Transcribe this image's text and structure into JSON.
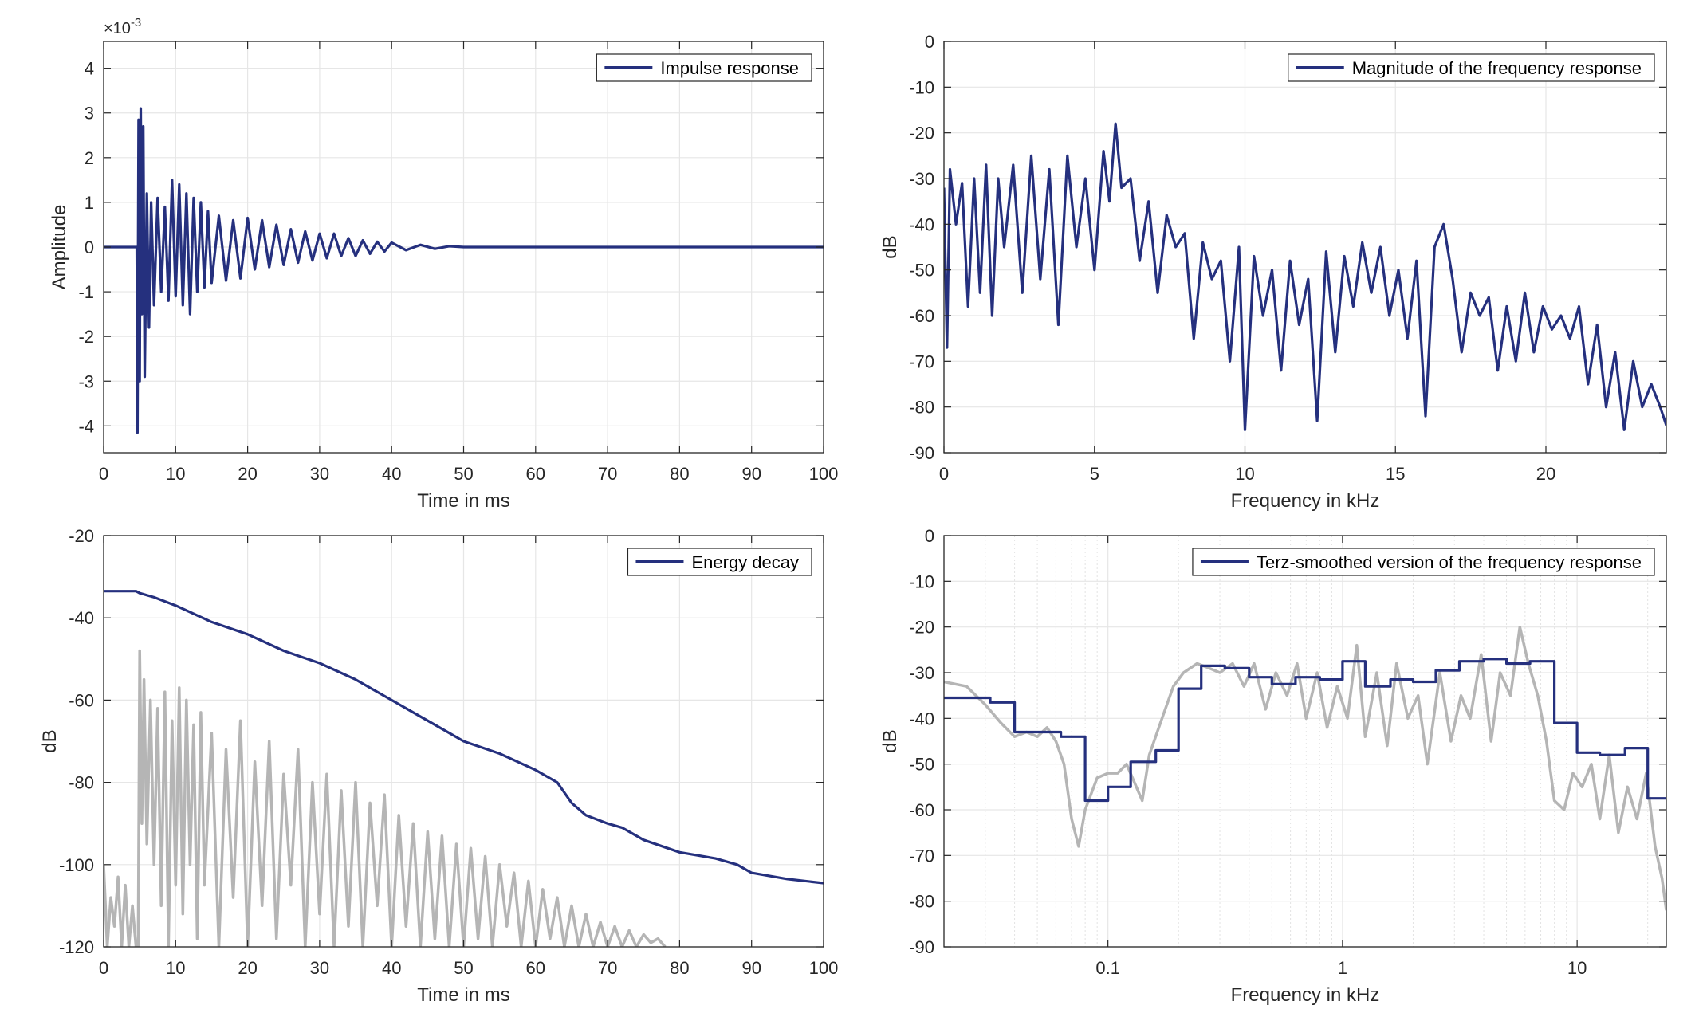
{
  "colors": {
    "series": "#25307e",
    "background_trace": "#b5b5b5",
    "grid": "#e6e6e6",
    "axis": "#262626"
  },
  "chart_data": [
    {
      "id": "impulse",
      "type": "line",
      "xscale": "linear",
      "xlabel": "Time in ms",
      "ylabel": "Amplitude",
      "exponent_label": "×10",
      "exponent_power": "-3",
      "xlim": [
        0,
        100
      ],
      "ylim": [
        -4.6,
        4.6
      ],
      "xticks": [
        0,
        10,
        20,
        30,
        40,
        50,
        60,
        70,
        80,
        90,
        100
      ],
      "xticklabels": [
        "0",
        "10",
        "20",
        "30",
        "40",
        "50",
        "60",
        "70",
        "80",
        "90",
        "100"
      ],
      "yticks": [
        -4,
        -3,
        -2,
        -1,
        0,
        1,
        2,
        3,
        4
      ],
      "yticklabels": [
        "-4",
        "-3",
        "-2",
        "-1",
        "0",
        "1",
        "2",
        "3",
        "4"
      ],
      "grid": true,
      "legend": {
        "position": "top-right",
        "entries": [
          "Impulse response"
        ]
      },
      "series": [
        {
          "name": "Impulse response",
          "color": "#25307e",
          "x": [
            0,
            4.6,
            4.7,
            4.85,
            5.0,
            5.15,
            5.3,
            5.5,
            5.7,
            6.0,
            6.3,
            6.6,
            7.0,
            7.5,
            8.0,
            8.5,
            9.0,
            9.5,
            10.0,
            10.5,
            11.0,
            11.5,
            12.0,
            12.5,
            13.0,
            13.5,
            14.0,
            14.5,
            15.0,
            16.0,
            17.0,
            18.0,
            19.0,
            20.0,
            21.0,
            22.0,
            23.0,
            24.0,
            25.0,
            26.0,
            27.0,
            28.0,
            29.0,
            30.0,
            31.0,
            32.0,
            33.0,
            34.0,
            35.0,
            36.0,
            37.0,
            38.0,
            39.0,
            40.0,
            42.0,
            44.0,
            46.0,
            48.0,
            50.0,
            100.0
          ],
          "y": [
            0,
            0,
            -4.15,
            2.85,
            -3.0,
            3.1,
            -1.5,
            2.7,
            -2.9,
            1.2,
            -1.8,
            1.0,
            -1.3,
            1.1,
            -1.0,
            0.9,
            -1.2,
            1.5,
            -1.1,
            1.4,
            -1.3,
            1.2,
            -1.5,
            1.1,
            -1.0,
            1.0,
            -0.9,
            0.8,
            -0.8,
            0.7,
            -0.75,
            0.6,
            -0.7,
            0.65,
            -0.5,
            0.6,
            -0.45,
            0.5,
            -0.4,
            0.4,
            -0.35,
            0.35,
            -0.3,
            0.3,
            -0.25,
            0.3,
            -0.2,
            0.2,
            -0.2,
            0.15,
            -0.15,
            0.12,
            -0.1,
            0.1,
            -0.07,
            0.05,
            -0.04,
            0.02,
            0,
            0
          ]
        }
      ]
    },
    {
      "id": "magnitude",
      "type": "line",
      "xscale": "linear",
      "xlabel": "Frequency in kHz",
      "ylabel": "dB",
      "xlim": [
        0,
        24
      ],
      "ylim": [
        -90,
        0
      ],
      "xticks": [
        0,
        5,
        10,
        15,
        20
      ],
      "xticklabels": [
        "0",
        "5",
        "10",
        "15",
        "20"
      ],
      "yticks": [
        0,
        -10,
        -20,
        -30,
        -40,
        -50,
        -60,
        -70,
        -80,
        -90
      ],
      "yticklabels": [
        "0",
        "-10",
        "-20",
        "-30",
        "-40",
        "-50",
        "-60",
        "-70",
        "-80",
        "-90"
      ],
      "grid": true,
      "legend": {
        "position": "top-right",
        "entries": [
          "Magnitude of the frequency response"
        ]
      },
      "series": [
        {
          "name": "Magnitude of the frequency response",
          "color": "#25307e",
          "x": [
            0,
            0.1,
            0.2,
            0.4,
            0.6,
            0.8,
            1.0,
            1.2,
            1.4,
            1.6,
            1.8,
            2.0,
            2.3,
            2.6,
            2.9,
            3.2,
            3.5,
            3.8,
            4.1,
            4.4,
            4.7,
            5.0,
            5.3,
            5.5,
            5.7,
            5.9,
            6.2,
            6.5,
            6.8,
            7.1,
            7.4,
            7.7,
            8.0,
            8.3,
            8.6,
            8.9,
            9.2,
            9.5,
            9.8,
            10.0,
            10.3,
            10.6,
            10.9,
            11.2,
            11.5,
            11.8,
            12.1,
            12.4,
            12.7,
            13.0,
            13.3,
            13.6,
            13.9,
            14.2,
            14.5,
            14.8,
            15.1,
            15.4,
            15.7,
            16.0,
            16.3,
            16.6,
            16.9,
            17.2,
            17.5,
            17.8,
            18.1,
            18.4,
            18.7,
            19.0,
            19.3,
            19.6,
            19.9,
            20.2,
            20.5,
            20.8,
            21.1,
            21.4,
            21.7,
            22.0,
            22.3,
            22.6,
            22.9,
            23.2,
            23.5,
            23.8,
            24.0
          ],
          "y": [
            -32,
            -67,
            -28,
            -40,
            -31,
            -58,
            -30,
            -55,
            -27,
            -60,
            -30,
            -45,
            -27,
            -55,
            -25,
            -52,
            -28,
            -62,
            -25,
            -45,
            -30,
            -50,
            -24,
            -35,
            -18,
            -32,
            -30,
            -48,
            -35,
            -55,
            -38,
            -45,
            -42,
            -65,
            -44,
            -52,
            -48,
            -70,
            -45,
            -85,
            -47,
            -60,
            -50,
            -72,
            -48,
            -62,
            -52,
            -83,
            -46,
            -68,
            -47,
            -58,
            -44,
            -55,
            -45,
            -60,
            -50,
            -65,
            -48,
            -82,
            -45,
            -40,
            -52,
            -68,
            -55,
            -60,
            -56,
            -72,
            -58,
            -70,
            -55,
            -68,
            -58,
            -63,
            -60,
            -65,
            -58,
            -75,
            -62,
            -80,
            -68,
            -85,
            -70,
            -80,
            -75,
            -80,
            -84
          ]
        }
      ]
    },
    {
      "id": "decay",
      "type": "line",
      "xscale": "linear",
      "xlabel": "Time in ms",
      "ylabel": "dB",
      "xlim": [
        0,
        100
      ],
      "ylim": [
        -120,
        -20
      ],
      "xticks": [
        0,
        10,
        20,
        30,
        40,
        50,
        60,
        70,
        80,
        90,
        100
      ],
      "xticklabels": [
        "0",
        "10",
        "20",
        "30",
        "40",
        "50",
        "60",
        "70",
        "80",
        "90",
        "100"
      ],
      "yticks": [
        -20,
        -40,
        -60,
        -80,
        -100,
        -120
      ],
      "yticklabels": [
        "-20",
        "-40",
        "-60",
        "-80",
        "-100",
        "-120"
      ],
      "grid": true,
      "legend": {
        "position": "top-right",
        "entries": [
          "Energy decay"
        ]
      },
      "series": [
        {
          "name": "Energy decay",
          "color": "#25307e",
          "x": [
            0,
            4.5,
            5,
            7,
            10,
            15,
            20,
            25,
            30,
            35,
            40,
            45,
            50,
            55,
            60,
            63,
            65,
            67,
            70,
            72,
            75,
            80,
            85,
            88,
            90,
            95,
            100
          ],
          "y": [
            -33.5,
            -33.5,
            -34,
            -35,
            -37,
            -41,
            -44,
            -48,
            -51,
            -55,
            -60,
            -65,
            -70,
            -73,
            -77,
            -80,
            -85,
            -88,
            -90,
            -91,
            -94,
            -97,
            -98.5,
            -100,
            -102,
            -103.5,
            -104.5
          ]
        },
        {
          "color": "#b5b5b5",
          "x": [
            0,
            0.5,
            1,
            1.5,
            2,
            2.5,
            3,
            3.5,
            4,
            4.5,
            4.8,
            5,
            5.3,
            5.6,
            6,
            6.5,
            7,
            7.5,
            8,
            8.5,
            9,
            9.5,
            10,
            10.5,
            11,
            11.5,
            12,
            12.5,
            13,
            13.5,
            14,
            15,
            16,
            17,
            18,
            19,
            20,
            21,
            22,
            23,
            24,
            25,
            26,
            27,
            28,
            29,
            30,
            31,
            32,
            33,
            34,
            35,
            36,
            37,
            38,
            39,
            40,
            41,
            42,
            43,
            44,
            45,
            46,
            47,
            48,
            49,
            50,
            51,
            52,
            53,
            54,
            55,
            56,
            57,
            58,
            59,
            60,
            61,
            62,
            63,
            64,
            65,
            66,
            67,
            68,
            69,
            70,
            71,
            72,
            73,
            74,
            75,
            76,
            77,
            78
          ],
          "y": [
            -100,
            -120,
            -108,
            -115,
            -103,
            -120,
            -105,
            -120,
            -110,
            -120,
            -120,
            -48,
            -90,
            -55,
            -95,
            -60,
            -100,
            -62,
            -110,
            -58,
            -120,
            -65,
            -105,
            -57,
            -112,
            -60,
            -100,
            -66,
            -118,
            -63,
            -105,
            -68,
            -120,
            -72,
            -108,
            -65,
            -120,
            -75,
            -110,
            -70,
            -118,
            -78,
            -105,
            -72,
            -120,
            -80,
            -112,
            -78,
            -120,
            -82,
            -115,
            -80,
            -120,
            -85,
            -110,
            -83,
            -120,
            -88,
            -115,
            -90,
            -120,
            -92,
            -118,
            -93,
            -120,
            -95,
            -120,
            -96,
            -118,
            -98,
            -120,
            -100,
            -115,
            -102,
            -120,
            -104,
            -120,
            -106,
            -118,
            -108,
            -120,
            -110,
            -120,
            -112,
            -120,
            -114,
            -120,
            -115,
            -120,
            -116,
            -120,
            -117,
            -119,
            -118,
            -120
          ]
        }
      ]
    },
    {
      "id": "terz",
      "type": "line",
      "xscale": "log",
      "xlabel": "Frequency in kHz",
      "ylabel": "dB",
      "xlim": [
        0.02,
        24
      ],
      "ylim": [
        -90,
        0
      ],
      "xticks": [
        0.1,
        1,
        10
      ],
      "xticklabels": [
        "0.1",
        "1",
        "10"
      ],
      "yticks": [
        0,
        -10,
        -20,
        -30,
        -40,
        -50,
        -60,
        -70,
        -80,
        -90
      ],
      "yticklabels": [
        "0",
        "-10",
        "-20",
        "-30",
        "-40",
        "-50",
        "-60",
        "-70",
        "-80",
        "-90"
      ],
      "grid": true,
      "legend": {
        "position": "top-right",
        "entries": [
          "Terz-smoothed version of the frequency response"
        ]
      },
      "series": [
        {
          "color": "#b5b5b5",
          "x": [
            0.02,
            0.025,
            0.03,
            0.035,
            0.04,
            0.045,
            0.05,
            0.055,
            0.06,
            0.065,
            0.07,
            0.075,
            0.08,
            0.09,
            0.1,
            0.11,
            0.12,
            0.14,
            0.15,
            0.17,
            0.19,
            0.21,
            0.24,
            0.27,
            0.3,
            0.34,
            0.38,
            0.42,
            0.47,
            0.52,
            0.58,
            0.64,
            0.7,
            0.78,
            0.86,
            0.95,
            1.05,
            1.15,
            1.25,
            1.4,
            1.55,
            1.7,
            1.9,
            2.1,
            2.3,
            2.6,
            2.9,
            3.2,
            3.5,
            3.9,
            4.3,
            4.7,
            5.2,
            5.7,
            6.2,
            6.8,
            7.4,
            8.0,
            8.8,
            9.6,
            10.5,
            11.5,
            12.5,
            13.7,
            15.0,
            16.4,
            18.0,
            19.7,
            21.5,
            23.0,
            24.0
          ],
          "y": [
            -32,
            -33,
            -37,
            -41,
            -44,
            -43,
            -44,
            -42,
            -45,
            -50,
            -62,
            -68,
            -60,
            -53,
            -52,
            -52,
            -50,
            -58,
            -48,
            -40,
            -33,
            -30,
            -28,
            -29,
            -30,
            -28,
            -33,
            -28,
            -38,
            -30,
            -35,
            -28,
            -40,
            -30,
            -42,
            -33,
            -40,
            -24,
            -44,
            -30,
            -46,
            -28,
            -40,
            -35,
            -50,
            -30,
            -45,
            -35,
            -40,
            -26,
            -45,
            -30,
            -35,
            -20,
            -28,
            -35,
            -45,
            -58,
            -60,
            -52,
            -55,
            -50,
            -62,
            -48,
            -65,
            -55,
            -62,
            -52,
            -68,
            -75,
            -82
          ]
        },
        {
          "name": "Terz-smoothed version of the frequency response",
          "color": "#25307e",
          "x": [
            0.02,
            0.0315,
            0.0315,
            0.04,
            0.04,
            0.063,
            0.063,
            0.08,
            0.08,
            0.1,
            0.1,
            0.125,
            0.125,
            0.16,
            0.16,
            0.2,
            0.2,
            0.25,
            0.25,
            0.315,
            0.315,
            0.4,
            0.4,
            0.5,
            0.5,
            0.63,
            0.63,
            0.8,
            0.8,
            1.0,
            1.0,
            1.25,
            1.25,
            1.6,
            1.6,
            2.0,
            2.0,
            2.5,
            2.5,
            3.15,
            3.15,
            4.0,
            4.0,
            5.0,
            5.0,
            6.3,
            6.3,
            8.0,
            8.0,
            10.0,
            10.0,
            12.5,
            12.5,
            16.0,
            16.0,
            20.0,
            20.0,
            24.0
          ],
          "y": [
            -35.5,
            -35.5,
            -36.5,
            -36.5,
            -43,
            -43,
            -44,
            -44,
            -58,
            -58,
            -55,
            -55,
            -49.5,
            -49.5,
            -47,
            -47,
            -33.5,
            -33.5,
            -28.5,
            -28.5,
            -29,
            -29,
            -31,
            -31,
            -32.5,
            -32.5,
            -31,
            -31,
            -31.5,
            -31.5,
            -27.5,
            -27.5,
            -33,
            -33,
            -31.5,
            -31.5,
            -32,
            -32,
            -29.5,
            -29.5,
            -27.5,
            -27.5,
            -27,
            -27,
            -28,
            -28,
            -27.5,
            -27.5,
            -41,
            -41,
            -47.5,
            -47.5,
            -48,
            -48,
            -46.5,
            -46.5,
            -57.5,
            -57.5
          ]
        }
      ]
    }
  ]
}
